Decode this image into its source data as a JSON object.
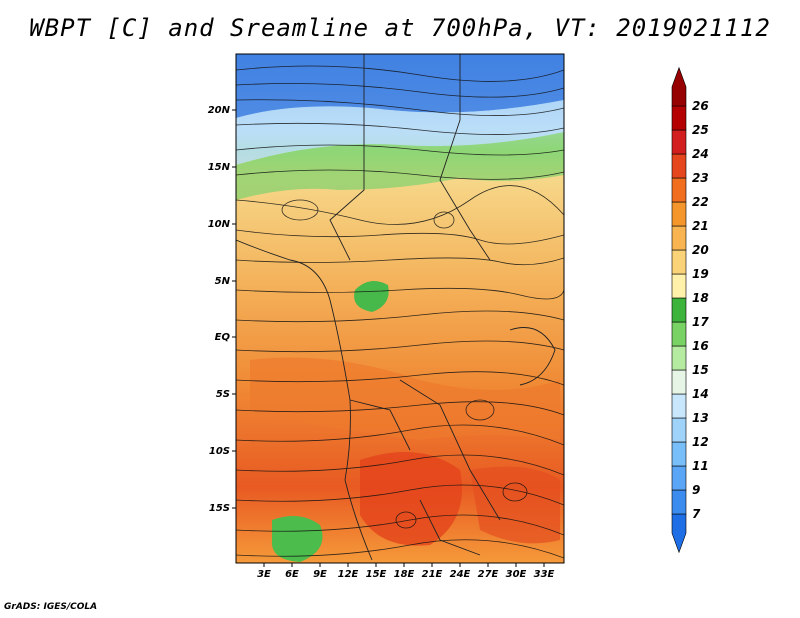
{
  "title": "WBPT [C] and Sreamline at 700hPa, VT: 2019021112",
  "footer": "GrADS: IGES/COLA",
  "map": {
    "lat_labels": [
      "20N",
      "15N",
      "10N",
      "5N",
      "EQ",
      "5S",
      "10S",
      "15S"
    ],
    "lon_labels": [
      "3E",
      "6E",
      "9E",
      "12E",
      "15E",
      "18E",
      "21E",
      "24E",
      "27E",
      "30E",
      "33E"
    ]
  },
  "colorbar": {
    "levels": [
      "7",
      "9",
      "11",
      "12",
      "13",
      "14",
      "15",
      "16",
      "17",
      "18",
      "19",
      "20",
      "21",
      "22",
      "23",
      "24",
      "25",
      "26"
    ],
    "colors": [
      "#1e6ee6",
      "#3c8cf0",
      "#5aa5f5",
      "#78bef8",
      "#a0d3fa",
      "#c8e6fc",
      "#e6f5e6",
      "#b4eba0",
      "#78d264",
      "#3cb43c",
      "#fff0aa",
      "#fad278",
      "#f7b450",
      "#f5962d",
      "#f06e1e",
      "#e6461e",
      "#d21e1e",
      "#b40000",
      "#960000"
    ]
  }
}
